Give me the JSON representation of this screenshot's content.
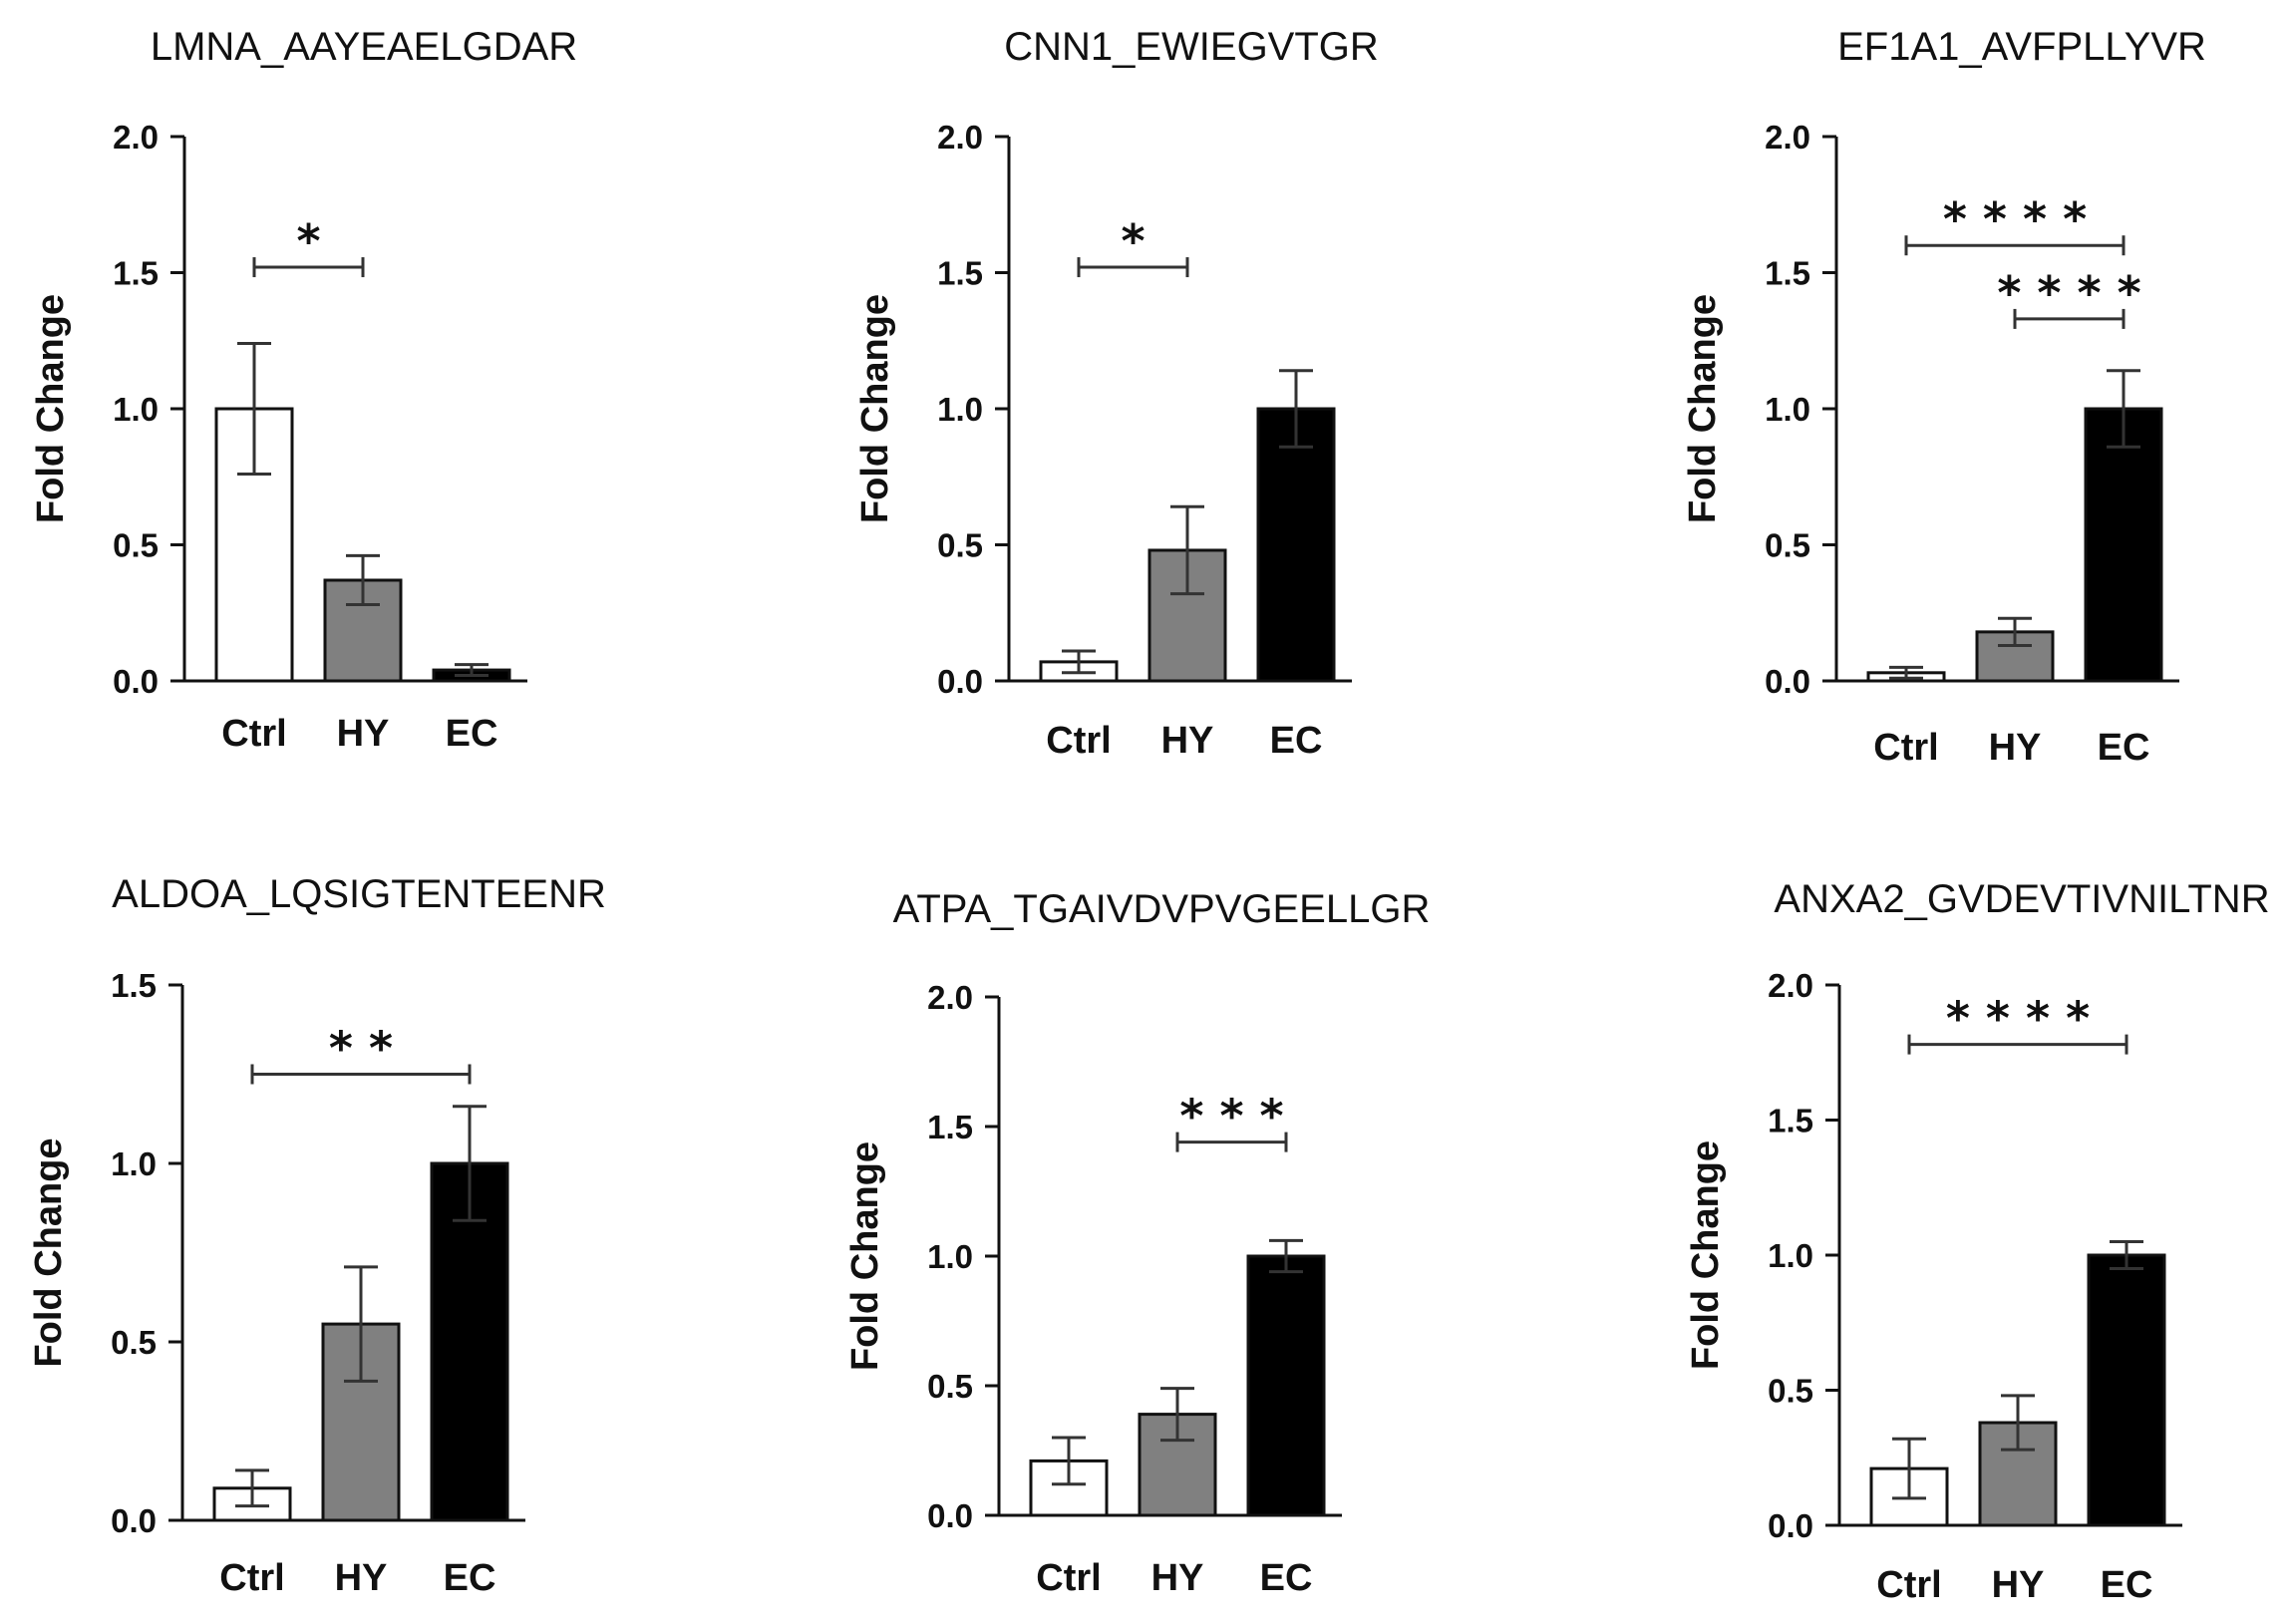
{
  "chart_data": [
    {
      "type": "bar",
      "title": "LMNA_AAYEAELGDAR",
      "ylabel": "Fold Change",
      "xlabel": "",
      "categories": [
        "Ctrl",
        "HY",
        "EC"
      ],
      "values": [
        1.0,
        0.37,
        0.04
      ],
      "errors": [
        0.24,
        0.09,
        0.02
      ],
      "colors": [
        "#ffffff",
        "#808080",
        "#000000"
      ],
      "ylim": [
        0,
        2.0
      ],
      "yticks": [
        "0.0",
        "0.5",
        "1.0",
        "1.5",
        "2.0"
      ],
      "significance": [
        {
          "from": "Ctrl",
          "to": "HY",
          "label": "*",
          "level": 1.52
        }
      ]
    },
    {
      "type": "bar",
      "title": "CNN1_EWIEGVTGR",
      "ylabel": "Fold Change",
      "xlabel": "",
      "categories": [
        "Ctrl",
        "HY",
        "EC"
      ],
      "values": [
        0.07,
        0.48,
        1.0
      ],
      "errors": [
        0.04,
        0.16,
        0.14
      ],
      "colors": [
        "#ffffff",
        "#808080",
        "#000000"
      ],
      "ylim": [
        0,
        2.0
      ],
      "yticks": [
        "0.0",
        "0.5",
        "1.0",
        "1.5",
        "2.0"
      ],
      "significance": [
        {
          "from": "Ctrl",
          "to": "HY",
          "label": "*",
          "level": 1.52
        }
      ]
    },
    {
      "type": "bar",
      "title": "EF1A1_AVFPLLYVR",
      "ylabel": "Fold Change",
      "xlabel": "",
      "categories": [
        "Ctrl",
        "HY",
        "EC"
      ],
      "values": [
        0.03,
        0.18,
        1.0
      ],
      "errors": [
        0.02,
        0.05,
        0.14
      ],
      "colors": [
        "#ffffff",
        "#808080",
        "#000000"
      ],
      "ylim": [
        0,
        2.0
      ],
      "yticks": [
        "0.0",
        "0.5",
        "1.0",
        "1.5",
        "2.0"
      ],
      "significance": [
        {
          "from": "Ctrl",
          "to": "EC",
          "label": "* * * *",
          "level": 1.6
        },
        {
          "from": "HY",
          "to": "EC",
          "label": "* * * *",
          "level": 1.33
        }
      ]
    },
    {
      "type": "bar",
      "title": "ALDOA_LQSIGTENTEENR",
      "ylabel": "Fold Change",
      "xlabel": "",
      "categories": [
        "Ctrl",
        "HY",
        "EC"
      ],
      "values": [
        0.09,
        0.55,
        1.0
      ],
      "errors": [
        0.05,
        0.16,
        0.16
      ],
      "colors": [
        "#ffffff",
        "#808080",
        "#000000"
      ],
      "ylim": [
        0,
        1.5
      ],
      "yticks": [
        "0.0",
        "0.5",
        "1.0",
        "1.5"
      ],
      "significance": [
        {
          "from": "Ctrl",
          "to": "EC",
          "label": "* *",
          "level": 1.25
        }
      ]
    },
    {
      "type": "bar",
      "title": "ATPA_TGAIVDVPVGEELLGR",
      "ylabel": "Fold Change",
      "xlabel": "",
      "categories": [
        "Ctrl",
        "HY",
        "EC"
      ],
      "values": [
        0.21,
        0.39,
        1.0
      ],
      "errors": [
        0.09,
        0.1,
        0.06
      ],
      "colors": [
        "#ffffff",
        "#808080",
        "#000000"
      ],
      "ylim": [
        0,
        2.0
      ],
      "yticks": [
        "0.0",
        "0.5",
        "1.0",
        "1.5",
        "2.0"
      ],
      "significance": [
        {
          "from": "HY",
          "to": "EC",
          "label": "* * *",
          "level": 1.44
        }
      ]
    },
    {
      "type": "bar",
      "title": "ANXA2_GVDEVTIVNILTNR",
      "ylabel": "Fold Change",
      "xlabel": "",
      "categories": [
        "Ctrl",
        "HY",
        "EC"
      ],
      "values": [
        0.21,
        0.38,
        1.0
      ],
      "errors": [
        0.11,
        0.1,
        0.05
      ],
      "colors": [
        "#ffffff",
        "#808080",
        "#000000"
      ],
      "ylim": [
        0,
        2.0
      ],
      "yticks": [
        "0.0",
        "0.5",
        "1.0",
        "1.5",
        "2.0"
      ],
      "significance": [
        {
          "from": "Ctrl",
          "to": "EC",
          "label": "* * * *",
          "level": 1.78
        }
      ]
    }
  ]
}
